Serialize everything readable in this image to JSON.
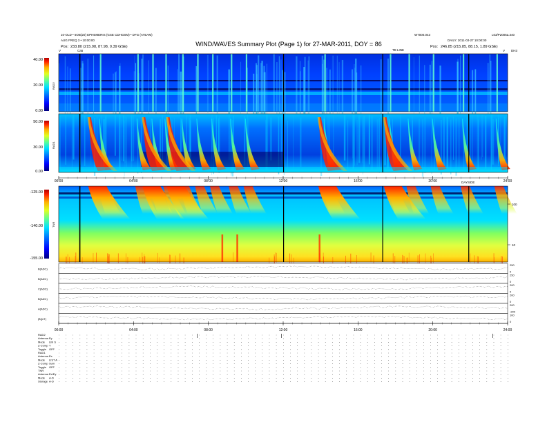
{
  "header": {
    "left_line1": "10-OLD • 6OB(20) EPHEMERIS (GSE CDHGSM) • DFG (ATEAM)",
    "left_line2": "AUG FREQ 3 • 10:00:00",
    "left_line3_label": "Pos:",
    "left_line3_value": "233.80 (215.98, 87.98, 0.39 GSE)",
    "left_mark_v": "V",
    "left_mark_c": "Ca5",
    "title": "WIND/WAVES Summary Plot (Page 1) for 27-MAR-2011, DOY = 86",
    "right_top1": "W7000.043",
    "right_top2": "L03/P2005a.340",
    "right_line2": "DAILY: 2011-03-27 10:00:00",
    "right_line3_label": "Pos:",
    "right_line3_value": "246.85 (215.85, 88.15, 1.89 GSE)",
    "tb_label": "TB LINE",
    "right_mark_v": "V",
    "right_mark_end": "DH3"
  },
  "panels": {
    "rad2": {
      "label": "RAD2",
      "ticks": [
        "40.00",
        "20.00",
        "0.00"
      ]
    },
    "rad1": {
      "label": "RAD1",
      "ticks": [
        "50.00",
        "30.00",
        "0.00"
      ]
    },
    "tnr": {
      "label": "TNR",
      "ticks": [
        "-125.00",
        "-140.00",
        "-155.00"
      ],
      "right_ticks": [
        "100",
        "10"
      ]
    }
  },
  "time_axis": {
    "ticks": [
      "00:00",
      "04:00",
      "08:00",
      "12:00",
      "16:00",
      "20:00",
      "24:00"
    ],
    "mid_label": "DAYSIDE"
  },
  "line_panels": [
    {
      "label": "B(ADC)",
      "r1": "250",
      "r2": "0"
    },
    {
      "label": "B(ADC)",
      "r1": "250",
      "r2": "0"
    },
    {
      "label": "C(ADC)",
      "r1": "200",
      "r2": "0"
    },
    {
      "label": "B(ADC)",
      "r1": "200",
      "r2": "0"
    },
    {
      "label": "A(ADC)",
      "r1": "200",
      "r2": "-200"
    },
    {
      "label": "|B|(nT)",
      "r1": "100",
      "r2": "0"
    }
  ],
  "mode_table": [
    {
      "label": "RAD2",
      "value": ""
    },
    {
      "label": "Antenna",
      "value": "Ey"
    },
    {
      "label": "Mode",
      "value": "LIN S"
    },
    {
      "label": "Z-Comp",
      "value": "Y"
    },
    {
      "label": "Toggle",
      "value": "OFF"
    },
    {
      "label": "RAD1",
      "value": ""
    },
    {
      "label": "Antenna",
      "value": "Ex"
    },
    {
      "label": "Mode",
      "value": "LIST A"
    },
    {
      "label": "Z-Comp",
      "value": "Sum"
    },
    {
      "label": "Toggle",
      "value": "OFF"
    },
    {
      "label": "TNR",
      "value": ""
    },
    {
      "label": "Antenna",
      "value": "Ex/Ey"
    },
    {
      "label": "Mode",
      "value": "A-D"
    },
    {
      "label": "Storage",
      "value": "A-D"
    }
  ],
  "colors": {
    "c0": "#00007f",
    "c1": "#0000ff",
    "c2": "#0070ff",
    "c3": "#00e0ff",
    "c4": "#60ff90",
    "c5": "#e0ff20",
    "c6": "#ffb000",
    "c7": "#ff2000",
    "c8": "#b00000"
  },
  "chart_data": {
    "type": "heatmap",
    "title": "WIND/WAVES Summary Plot (Page 1) for 27-MAR-2011, DOY = 86",
    "xlabel": "",
    "ylabel": "",
    "x_ticks": [
      "00:00",
      "04:00",
      "08:00",
      "12:00",
      "16:00",
      "20:00",
      "24:00"
    ],
    "xlim": [
      0,
      24
    ],
    "series": [
      {
        "name": "RAD2",
        "colorbar": [
          "0.00",
          "20.00",
          "40.00"
        ]
      },
      {
        "name": "RAD1",
        "colorbar": [
          "0.00",
          "30.00",
          "50.00"
        ]
      },
      {
        "name": "TNR",
        "colorbar": [
          "-155.00",
          "-140.00",
          "-125.00"
        ]
      }
    ],
    "burst_times_hours": [
      2.2,
      4.2,
      5.0,
      5.7,
      6.6,
      7.4,
      8.2,
      9.2,
      10.0,
      14.2,
      17.7,
      18.7,
      20.0,
      21.6,
      23.4
    ],
    "strong_burst_times_hours": [
      1.8,
      4.7,
      6.0,
      14.1,
      17.6
    ],
    "black_lines_hours": [
      1.1,
      12.0,
      17.3,
      21.9
    ]
  }
}
